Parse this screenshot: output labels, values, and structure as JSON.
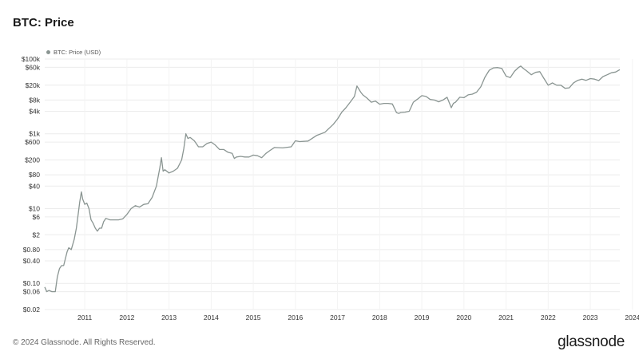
{
  "page": {
    "title": "BTC: Price",
    "footer": "© 2024 Glassnode. All Rights Reserved.",
    "brand": "glassnode"
  },
  "chart_data": {
    "type": "line",
    "title": "BTC: Price",
    "xlabel": "",
    "ylabel": "",
    "y_scale": "log",
    "ylim": [
      0.02,
      100000
    ],
    "xlim": [
      2010.55,
      2024.2
    ],
    "grid": true,
    "legend": {
      "position": "top-left",
      "entries": [
        "BTC: Price (USD)"
      ]
    },
    "colors": {
      "series": "#8a9592",
      "grid": "#ececec"
    },
    "y_ticks": [
      {
        "value": 100000,
        "label": "$100k"
      },
      {
        "value": 60000,
        "label": "$60k"
      },
      {
        "value": 20000,
        "label": "$20k"
      },
      {
        "value": 8000,
        "label": "$8k"
      },
      {
        "value": 4000,
        "label": "$4k"
      },
      {
        "value": 1000,
        "label": "$1k"
      },
      {
        "value": 600,
        "label": "$600"
      },
      {
        "value": 200,
        "label": "$200"
      },
      {
        "value": 80,
        "label": "$80"
      },
      {
        "value": 40,
        "label": "$40"
      },
      {
        "value": 10,
        "label": "$10"
      },
      {
        "value": 6,
        "label": "$6"
      },
      {
        "value": 2,
        "label": "$2"
      },
      {
        "value": 0.8,
        "label": "$0.80"
      },
      {
        "value": 0.4,
        "label": "$0.40"
      },
      {
        "value": 0.1,
        "label": "$0.10"
      },
      {
        "value": 0.06,
        "label": "$0.06"
      },
      {
        "value": 0.02,
        "label": "$0.02"
      }
    ],
    "x_ticks": [
      {
        "value": 2011,
        "label": "2011"
      },
      {
        "value": 2012,
        "label": "2012"
      },
      {
        "value": 2013,
        "label": "2013"
      },
      {
        "value": 2014,
        "label": "2014"
      },
      {
        "value": 2015,
        "label": "2015"
      },
      {
        "value": 2016,
        "label": "2016"
      },
      {
        "value": 2017,
        "label": "2017"
      },
      {
        "value": 2018,
        "label": "2018"
      },
      {
        "value": 2019,
        "label": "2019"
      },
      {
        "value": 2020,
        "label": "2020"
      },
      {
        "value": 2021,
        "label": "2021"
      },
      {
        "value": 2022,
        "label": "2022"
      },
      {
        "value": 2023,
        "label": "2023"
      },
      {
        "value": 2024,
        "label": "2024"
      }
    ],
    "series": [
      {
        "name": "BTC: Price (USD)",
        "x": [
          2010.55,
          2010.6,
          2010.65,
          2010.72,
          2010.8,
          2010.85,
          2010.9,
          2010.95,
          2011.0,
          2011.08,
          2011.12,
          2011.18,
          2011.25,
          2011.3,
          2011.35,
          2011.38,
          2011.42,
          2011.45,
          2011.5,
          2011.55,
          2011.6,
          2011.65,
          2011.7,
          2011.75,
          2011.8,
          2011.85,
          2011.9,
          2011.95,
          2012.0,
          2012.1,
          2012.2,
          2012.3,
          2012.4,
          2012.5,
          2012.6,
          2012.7,
          2012.8,
          2012.9,
          2013.0,
          2013.1,
          2013.2,
          2013.28,
          2013.32,
          2013.36,
          2013.4,
          2013.5,
          2013.6,
          2013.7,
          2013.8,
          2013.85,
          2013.9,
          2013.95,
          2014.0,
          2014.1,
          2014.2,
          2014.3,
          2014.4,
          2014.5,
          2014.6,
          2014.7,
          2014.8,
          2014.9,
          2015.0,
          2015.05,
          2015.1,
          2015.2,
          2015.3,
          2015.4,
          2015.5,
          2015.6,
          2015.7,
          2015.8,
          2015.9,
          2016.0,
          2016.2,
          2016.4,
          2016.5,
          2016.6,
          2016.8,
          2017.0,
          2017.2,
          2017.4,
          2017.5,
          2017.6,
          2017.7,
          2017.8,
          2017.9,
          2017.96,
          2018.05,
          2018.1,
          2018.2,
          2018.3,
          2018.4,
          2018.5,
          2018.6,
          2018.7,
          2018.8,
          2018.9,
          2018.95,
          2019.0,
          2019.1,
          2019.2,
          2019.3,
          2019.4,
          2019.5,
          2019.6,
          2019.7,
          2019.8,
          2019.9,
          2020.0,
          2020.1,
          2020.2,
          2020.25,
          2020.3,
          2020.4,
          2020.5,
          2020.6,
          2020.7,
          2020.8,
          2020.9,
          2021.0,
          2021.1,
          2021.2,
          2021.3,
          2021.4,
          2021.5,
          2021.6,
          2021.7,
          2021.8,
          2021.85,
          2021.9,
          2022.0,
          2022.1,
          2022.2,
          2022.3,
          2022.4,
          2022.5,
          2022.6,
          2022.7,
          2022.8,
          2022.9,
          2023.0,
          2023.1,
          2023.2,
          2023.3,
          2023.4,
          2023.5,
          2023.6,
          2023.7,
          2023.8,
          2023.9,
          2024.0,
          2024.1,
          2024.2
        ],
        "values": [
          0.08,
          0.06,
          0.065,
          0.06,
          0.06,
          0.15,
          0.25,
          0.3,
          0.3,
          0.7,
          0.9,
          0.8,
          1.5,
          3,
          8,
          15,
          28,
          18,
          13,
          14,
          10,
          5,
          4,
          3,
          2.5,
          3,
          3,
          4.5,
          5.5,
          5,
          5,
          5,
          5.3,
          7,
          10,
          12,
          11,
          13,
          13.5,
          20,
          40,
          120,
          230,
          100,
          110,
          90,
          100,
          120,
          200,
          400,
          1000,
          750,
          800,
          650,
          450,
          450,
          550,
          600,
          500,
          380,
          380,
          320,
          300,
          220,
          240,
          250,
          240,
          240,
          270,
          260,
          230,
          300,
          360,
          430,
          420,
          450,
          650,
          620,
          640,
          900,
          1100,
          1800,
          2500,
          3800,
          5000,
          7000,
          10000,
          19000,
          13000,
          11000,
          9000,
          7000,
          7500,
          6200,
          6500,
          6500,
          6300,
          3700,
          3500,
          3700,
          3800,
          4000,
          7000,
          8500,
          10500,
          10000,
          8300,
          8000,
          7200,
          8000,
          9500,
          5000,
          6500,
          7000,
          9500,
          9300,
          11000,
          11500,
          13000,
          18000,
          33000,
          50000,
          58000,
          59000,
          56000,
          35000,
          32000,
          47000,
          60000,
          65000,
          57000,
          47000,
          38000,
          44000,
          46000,
          30000,
          20000,
          23000,
          20000,
          20000,
          16500,
          17000,
          23000,
          27000,
          29000,
          27000,
          30000,
          29000,
          26500,
          34000,
          38000,
          43000,
          45000,
          52000
        ]
      }
    ]
  }
}
